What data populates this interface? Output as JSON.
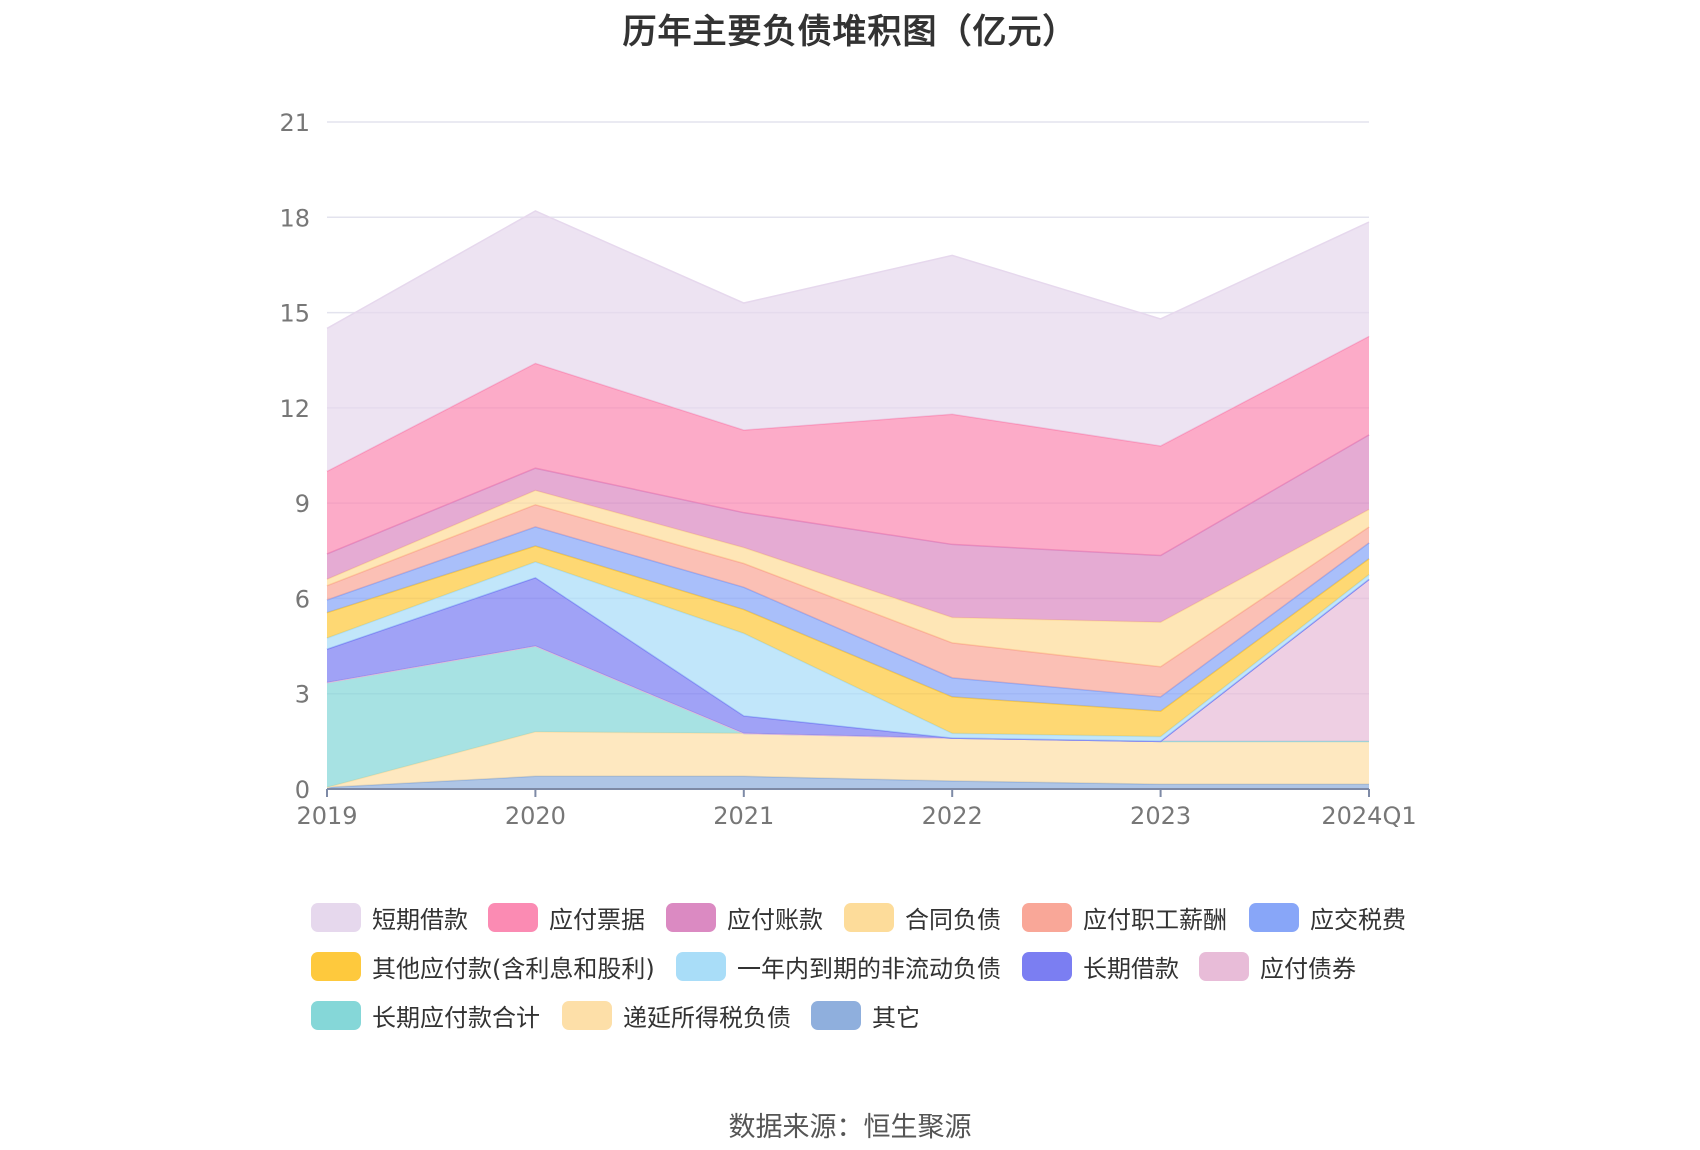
{
  "source": "数据来源：恒生聚源",
  "chart_data": {
    "type": "area",
    "stacked": true,
    "title": "历年主要负债堆积图（亿元）",
    "xlabel": "",
    "ylabel": "",
    "categories": [
      "2019",
      "2020",
      "2021",
      "2022",
      "2023",
      "2024Q1"
    ],
    "y_ticks": [
      0,
      3,
      6,
      9,
      12,
      15,
      18,
      21
    ],
    "ylim": [
      0,
      21
    ],
    "grid": true,
    "legend_position": "bottom",
    "series": [
      {
        "name": "其它",
        "color": "#8fafdd",
        "values": [
          0.05,
          0.4,
          0.4,
          0.25,
          0.15,
          0.15
        ]
      },
      {
        "name": "递延所得税负债",
        "color": "#fddfa8",
        "values": [
          0.0,
          1.4,
          1.35,
          1.35,
          1.35,
          1.35
        ]
      },
      {
        "name": "长期应付款合计",
        "color": "#85d7d8",
        "values": [
          3.3,
          2.7,
          0.0,
          0.0,
          0.0,
          0.0
        ]
      },
      {
        "name": "应付债券",
        "color": "#e8bcd8",
        "values": [
          0.0,
          0.0,
          0.0,
          0.0,
          0.0,
          5.1
        ]
      },
      {
        "name": "长期借款",
        "color": "#7b7ef2",
        "values": [
          1.05,
          2.15,
          0.55,
          0.0,
          0.0,
          0.0
        ]
      },
      {
        "name": "一年内到期的非流动负债",
        "color": "#a9ddf8",
        "values": [
          0.35,
          0.5,
          2.6,
          0.15,
          0.15,
          0.15
        ]
      },
      {
        "name": "其他应付款(含利息和股利)",
        "color": "#fec93d",
        "values": [
          0.8,
          0.5,
          0.75,
          1.15,
          0.8,
          0.5
        ]
      },
      {
        "name": "应交税费",
        "color": "#88a6f8",
        "values": [
          0.4,
          0.6,
          0.7,
          0.6,
          0.45,
          0.5
        ]
      },
      {
        "name": "应付职工薪酬",
        "color": "#f9a798",
        "values": [
          0.45,
          0.7,
          0.75,
          1.1,
          0.95,
          0.5
        ]
      },
      {
        "name": "合同负债",
        "color": "#fddc9a",
        "values": [
          0.2,
          0.45,
          0.5,
          0.8,
          1.4,
          0.55
        ]
      },
      {
        "name": "应付账款",
        "color": "#db8ac2",
        "values": [
          0.8,
          0.7,
          1.1,
          2.3,
          2.1,
          2.35
        ]
      },
      {
        "name": "应付票据",
        "color": "#fb8bb3",
        "values": [
          2.6,
          3.3,
          2.6,
          4.1,
          3.45,
          3.1
        ]
      },
      {
        "name": "短期借款",
        "color": "#e6d8ed",
        "values": [
          4.5,
          4.8,
          4.0,
          5.0,
          4.0,
          3.6
        ]
      }
    ],
    "legend_order": [
      "短期借款",
      "应付票据",
      "应付账款",
      "合同负债",
      "应付职工薪酬",
      "应交税费",
      "其他应付款(含利息和股利)",
      "一年内到期的非流动负债",
      "长期借款",
      "应付债券",
      "长期应付款合计",
      "递延所得税负债",
      "其它"
    ]
  }
}
